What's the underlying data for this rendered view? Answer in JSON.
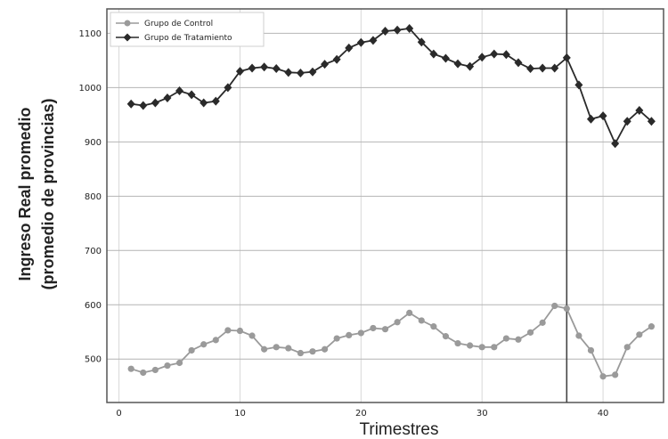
{
  "chart_data": {
    "type": "line",
    "title": "",
    "xlabel": "Trimestres",
    "ylabel_line1": "Ingreso Real promedio",
    "ylabel_line2": "(promedio de provincias)",
    "xlim": [
      -1,
      45
    ],
    "ylim": [
      420,
      1145
    ],
    "xticks": [
      0,
      10,
      20,
      30,
      40
    ],
    "yticks": [
      500,
      600,
      700,
      800,
      900,
      1000,
      1100
    ],
    "grid": true,
    "legend_position": "top-left",
    "vline_x": 37,
    "x": [
      1,
      2,
      3,
      4,
      5,
      6,
      7,
      8,
      9,
      10,
      11,
      12,
      13,
      14,
      15,
      16,
      17,
      18,
      19,
      20,
      21,
      22,
      23,
      24,
      25,
      26,
      27,
      28,
      29,
      30,
      31,
      32,
      33,
      34,
      35,
      36,
      37,
      38,
      39,
      40,
      41,
      42,
      43,
      44
    ],
    "series": [
      {
        "name": "Grupo de Control",
        "color": "#9a9a9a",
        "marker": "circle",
        "values": [
          482,
          475,
          480,
          488,
          493,
          516,
          527,
          535,
          553,
          552,
          543,
          518,
          522,
          520,
          511,
          514,
          518,
          538,
          544,
          548,
          557,
          555,
          568,
          585,
          571,
          560,
          542,
          529,
          525,
          522,
          522,
          538,
          536,
          549,
          567,
          598,
          593,
          543,
          516,
          468,
          471,
          522,
          545,
          560
        ]
      },
      {
        "name": "Grupo de Tratamiento",
        "color": "#2a2a2a",
        "marker": "diamond",
        "values": [
          970,
          967,
          972,
          981,
          994,
          987,
          972,
          975,
          1000,
          1030,
          1036,
          1038,
          1035,
          1028,
          1027,
          1029,
          1043,
          1052,
          1073,
          1083,
          1087,
          1104,
          1106,
          1109,
          1084,
          1062,
          1054,
          1044,
          1039,
          1056,
          1062,
          1061,
          1046,
          1035,
          1036,
          1036,
          1055,
          1005,
          942,
          948,
          897,
          938,
          958,
          938
        ]
      }
    ]
  }
}
